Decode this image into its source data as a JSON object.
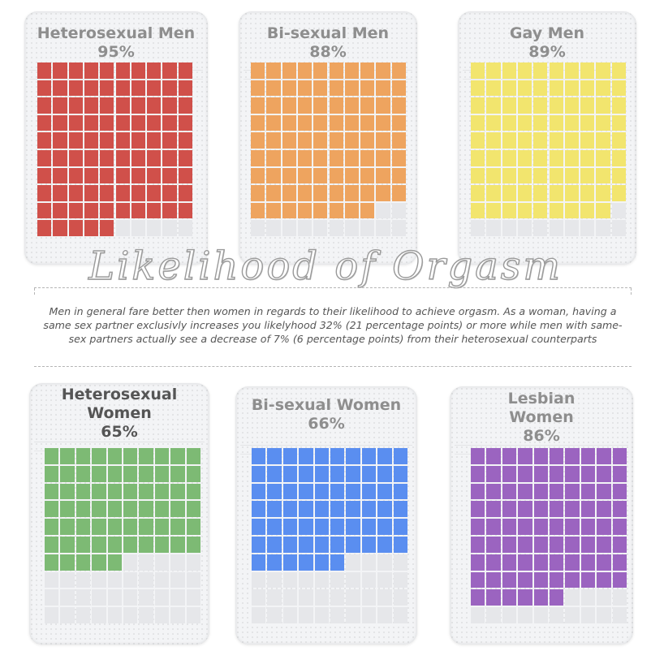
{
  "title": "Likelihood of Orgasm",
  "description": "Men in general fare better then women in regards to their likelihood to achieve orgasm. As a woman, having a same sex partner exclusivly increases you likelyhood  32% (21 percentage points) or more while men with same-sex partners actually see a decrease of 7% (6 percentage points) from their heterosexual counterparts",
  "colors": {
    "empty": "#e6e7ea",
    "gap": "#ffffff"
  },
  "panels": [
    {
      "label_lines": [
        "Heterosexual Men"
      ],
      "percent_label": "95%",
      "color": "#d0504a"
    },
    {
      "label_lines": [
        "Bi-sexual Men"
      ],
      "percent_label": "88%",
      "color": "#eea45f"
    },
    {
      "label_lines": [
        "Gay Men"
      ],
      "percent_label": "89%",
      "color": "#f2e56e"
    },
    {
      "label_lines": [
        "Heterosexual",
        "Women"
      ],
      "percent_label": "65%",
      "color": "#7dba74"
    },
    {
      "label_lines": [
        "Bi-sexual Women"
      ],
      "percent_label": "66%",
      "color": "#5a8ef0"
    },
    {
      "label_lines": [
        "Lesbian",
        "Women"
      ],
      "percent_label": "86%",
      "color": "#9b64c0"
    }
  ],
  "chart_data": {
    "type": "waffle",
    "grid": "10x10",
    "categories": [
      "Heterosexual Men",
      "Bi-sexual Men",
      "Gay Men",
      "Heterosexual Women",
      "Bi-sexual Women",
      "Lesbian Women"
    ],
    "values": [
      95,
      88,
      89,
      65,
      66,
      86
    ],
    "unit": "%"
  }
}
